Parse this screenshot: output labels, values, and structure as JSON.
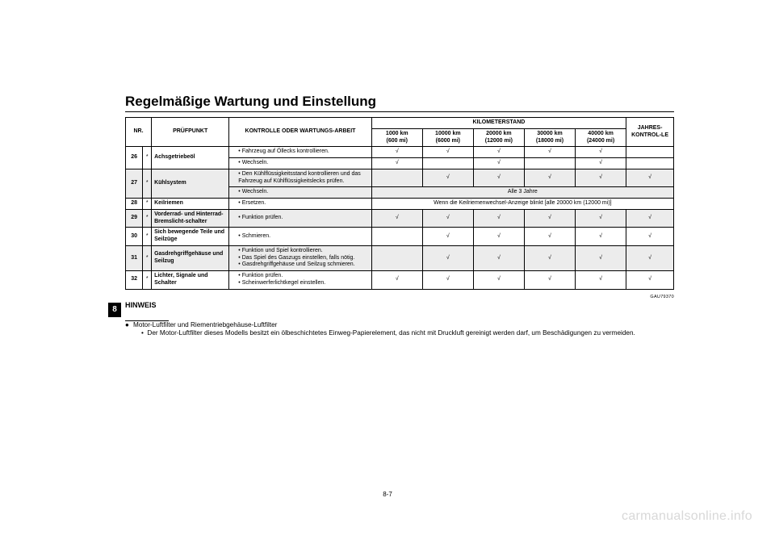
{
  "tab": "8",
  "title": "Regelmäßige Wartung und Einstellung",
  "ref_code": "GAU79370",
  "page_number": "8-7",
  "watermark": "carmanualsonline.info",
  "header": {
    "nr": "NR.",
    "pruefpunkt": "PRÜFPUNKT",
    "kontrolle": "KONTROLLE ODER WARTUNGS-ARBEIT",
    "kilometerstand": "KILOMETERSTAND",
    "jahres": "JAHRES-KONTROL-LE",
    "km_cols": [
      {
        "top": "1000 km",
        "bot": "(600 mi)"
      },
      {
        "top": "10000 km",
        "bot": "(6000 mi)"
      },
      {
        "top": "20000 km",
        "bot": "(12000 mi)"
      },
      {
        "top": "30000 km",
        "bot": "(18000 mi)"
      },
      {
        "top": "40000 km",
        "bot": "(24000 mi)"
      }
    ]
  },
  "tick_char": "√",
  "rows": {
    "r26": {
      "nr": "26",
      "star": "*",
      "pp": "Achsgetriebeöl",
      "a": {
        "kw": "Fahrzeug auf Öllecks kontrollieren.",
        "ticks": [
          "√",
          "√",
          "√",
          "√",
          "√"
        ],
        "jk": ""
      },
      "b": {
        "kw": "Wechseln.",
        "ticks": [
          "√",
          "",
          "√",
          "",
          "√"
        ],
        "jk": ""
      }
    },
    "r27": {
      "nr": "27",
      "star": "*",
      "pp": "Kühlsystem",
      "a": {
        "kw": "Den Kühlflüssigkeitsstand kontrollieren und das Fahrzeug auf Kühlflüssigkeitslecks prüfen.",
        "ticks": [
          "",
          "√",
          "√",
          "√",
          "√"
        ],
        "jk": "√"
      },
      "b": {
        "kw": "Wechseln.",
        "span_text": "Alle 3 Jahre"
      }
    },
    "r28": {
      "nr": "28",
      "star": "*",
      "pp": "Keilriemen",
      "kw": "Ersetzen.",
      "span_text": "Wenn die Keilriemenwechsel-Anzeige blinkt [alle 20000 km (12000 mi)]"
    },
    "r29": {
      "nr": "29",
      "star": "*",
      "pp": "Vorderrad- und Hinterrad-Bremslicht-schalter",
      "kw": "Funktion prüfen.",
      "ticks": [
        "√",
        "√",
        "√",
        "√",
        "√"
      ],
      "jk": "√"
    },
    "r30": {
      "nr": "30",
      "star": "*",
      "pp": "Sich bewegende Teile und Seilzüge",
      "kw": "Schmieren.",
      "ticks": [
        "",
        "√",
        "√",
        "√",
        "√"
      ],
      "jk": "√"
    },
    "r31": {
      "nr": "31",
      "star": "*",
      "pp": "Gasdrehgriffgehäuse und Seilzug",
      "kw_items": [
        "Funktion und Spiel kontrollieren.",
        "Das Spiel des Gaszugs einstellen, falls nötig.",
        "Gasdrehgriffgehäuse und Seilzug schmieren."
      ],
      "ticks": [
        "",
        "√",
        "√",
        "√",
        "√"
      ],
      "jk": "√"
    },
    "r32": {
      "nr": "32",
      "star": "*",
      "pp": "Lichter, Signale und Schalter",
      "kw_items": [
        "Funktion prüfen.",
        "Scheinwerferlichtkegel einstellen."
      ],
      "ticks": [
        "√",
        "√",
        "√",
        "√",
        "√"
      ],
      "jk": "√"
    }
  },
  "hinweis": {
    "title": "HINWEIS",
    "line1": "Motor-Luftfilter und Riementriebgehäuse-Luftfilter",
    "line2": "Der Motor-Luftfilter dieses Modells besitzt ein ölbeschichtetes Einweg-Papierelement, das nicht mit Druckluft gereinigt werden darf, um Beschädigungen zu vermeiden."
  }
}
